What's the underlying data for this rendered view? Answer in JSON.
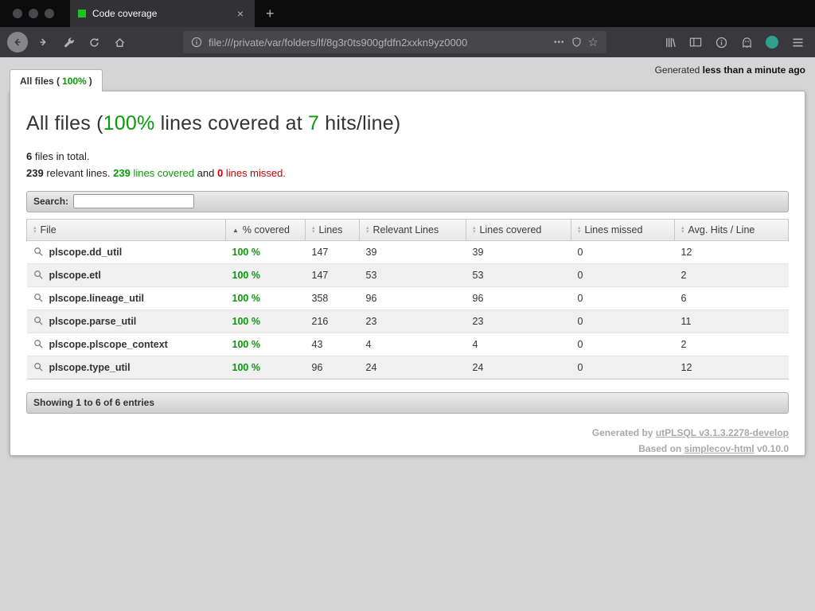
{
  "colors": {
    "green": "#0a9a0a",
    "red": "#cc0000",
    "favicon_green": "#1fc11f"
  },
  "browser": {
    "tab": {
      "title": "Code coverage",
      "close_glyph": "×"
    },
    "new_tab_glyph": "+",
    "url": "file:///private/var/folders/lf/8g3r0ts900gfdfn2xxkn9yz0000",
    "page_actions_glyph": "•••",
    "bookmark_star_glyph": "☆"
  },
  "page": {
    "generated_prefix": "Generated ",
    "generated_time": "less than a minute ago",
    "file_tab": {
      "prefix": "All files (",
      "percent": "100%",
      "suffix": ")"
    },
    "heading": {
      "part1": "All files (",
      "percent": "100%",
      "part2": " lines covered at ",
      "hits": "7",
      "part3": " hits/line)"
    },
    "stats1": {
      "count": "6",
      "text": " files in total."
    },
    "stats2": {
      "n1": "239",
      "t1": " relevant lines. ",
      "n2": "239",
      "t2": " lines covered",
      "t3": " and ",
      "n3": "0",
      "t4": " lines missed."
    },
    "search_label": "Search:",
    "table": {
      "columns": [
        "File",
        "% covered",
        "Lines",
        "Relevant Lines",
        "Lines covered",
        "Lines missed",
        "Avg. Hits / Line"
      ],
      "rows": [
        {
          "file": "plscope.dd_util",
          "covered": "100 %",
          "lines": "147",
          "relevant": "39",
          "covered_lines": "39",
          "missed": "0",
          "avg": "12"
        },
        {
          "file": "plscope.etl",
          "covered": "100 %",
          "lines": "147",
          "relevant": "53",
          "covered_lines": "53",
          "missed": "0",
          "avg": "2"
        },
        {
          "file": "plscope.lineage_util",
          "covered": "100 %",
          "lines": "358",
          "relevant": "96",
          "covered_lines": "96",
          "missed": "0",
          "avg": "6"
        },
        {
          "file": "plscope.parse_util",
          "covered": "100 %",
          "lines": "216",
          "relevant": "23",
          "covered_lines": "23",
          "missed": "0",
          "avg": "11"
        },
        {
          "file": "plscope.plscope_context",
          "covered": "100 %",
          "lines": "43",
          "relevant": "4",
          "covered_lines": "4",
          "missed": "0",
          "avg": "2"
        },
        {
          "file": "plscope.type_util",
          "covered": "100 %",
          "lines": "96",
          "relevant": "24",
          "covered_lines": "24",
          "missed": "0",
          "avg": "12"
        }
      ]
    },
    "showing_text": "Showing 1 to 6 of 6 entries",
    "credits": {
      "line1_prefix": "Generated by ",
      "line1_link": "utPLSQL v3.1.3.2278-develop",
      "line2_prefix": "Based on ",
      "line2_link": "simplecov-html",
      "line2_suffix": " v0.10.0"
    }
  }
}
